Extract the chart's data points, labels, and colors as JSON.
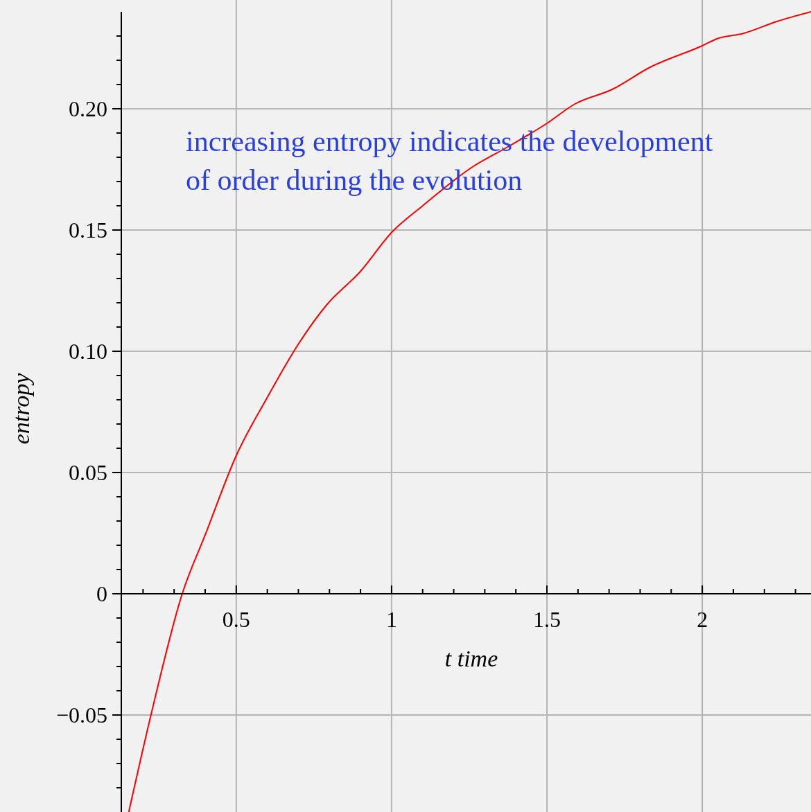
{
  "chart_data": {
    "type": "line",
    "xlabel": "t time",
    "ylabel": "entropy",
    "annotations": [
      "increasing entropy indicates the development\nof order during the evolution"
    ],
    "xlim": [
      0.13,
      2.35
    ],
    "ylim": [
      -0.09,
      0.24
    ],
    "xticks": [
      {
        "value": 0.2,
        "label": null
      },
      {
        "value": 0.3,
        "label": null
      },
      {
        "value": 0.4,
        "label": null
      },
      0.5,
      {
        "value": 0.6,
        "label": null
      },
      {
        "value": 0.7,
        "label": null
      },
      {
        "value": 0.8,
        "label": null
      },
      {
        "value": 0.9,
        "label": null
      },
      1,
      {
        "value": 1.1,
        "label": null
      },
      {
        "value": 1.2,
        "label": null
      },
      {
        "value": 1.3,
        "label": null
      },
      {
        "value": 1.4,
        "label": null
      },
      1.5,
      {
        "value": 1.6,
        "label": null
      },
      {
        "value": 1.7,
        "label": null
      },
      {
        "value": 1.8,
        "label": null
      },
      {
        "value": 1.9,
        "label": null
      },
      2,
      {
        "value": 2.1,
        "label": null
      },
      {
        "value": 2.2,
        "label": null
      },
      {
        "value": 2.3,
        "label": null
      }
    ],
    "yticks": [
      {
        "value": -0.08,
        "label": null
      },
      {
        "value": -0.07,
        "label": null
      },
      {
        "value": -0.06,
        "label": null
      },
      {
        "value": -0.05,
        "label": "−0.05"
      },
      {
        "value": -0.04,
        "label": null
      },
      {
        "value": -0.03,
        "label": null
      },
      {
        "value": -0.02,
        "label": null
      },
      {
        "value": -0.01,
        "label": null
      },
      0,
      {
        "value": 0.01,
        "label": null
      },
      {
        "value": 0.02,
        "label": null
      },
      {
        "value": 0.03,
        "label": null
      },
      {
        "value": 0.04,
        "label": null
      },
      {
        "value": 0.05,
        "label": "0.05"
      },
      {
        "value": 0.06,
        "label": null
      },
      {
        "value": 0.07,
        "label": null
      },
      {
        "value": 0.08,
        "label": null
      },
      {
        "value": 0.09,
        "label": null
      },
      {
        "value": 0.1,
        "label": "0.10"
      },
      {
        "value": 0.11,
        "label": null
      },
      {
        "value": 0.12,
        "label": null
      },
      {
        "value": 0.13,
        "label": null
      },
      {
        "value": 0.14,
        "label": null
      },
      {
        "value": 0.15,
        "label": "0.15"
      },
      {
        "value": 0.16,
        "label": null
      },
      {
        "value": 0.17,
        "label": null
      },
      {
        "value": 0.18,
        "label": null
      },
      {
        "value": 0.19,
        "label": null
      },
      {
        "value": 0.2,
        "label": "0.20"
      },
      {
        "value": 0.21,
        "label": null
      },
      {
        "value": 0.22,
        "label": null
      },
      {
        "value": 0.23,
        "label": null
      }
    ],
    "grid": true,
    "x": [
      0.154,
      0.228,
      0.326,
      0.4,
      0.5,
      0.6,
      0.7,
      0.79,
      0.9,
      1.0,
      1.1,
      1.26,
      1.37,
      1.5,
      1.59,
      1.71,
      1.83,
      2.0,
      2.05,
      2.13,
      2.24,
      2.35
    ],
    "series": [
      {
        "color": "#ff0000",
        "values": [
          -0.09,
          -0.0486,
          0,
          0.0243,
          0.057,
          0.081,
          0.103,
          0.119,
          0.133,
          0.149,
          0.16,
          0.176,
          0.184,
          0.194,
          0.202,
          0.208,
          0.217,
          0.226,
          0.229,
          0.231,
          0.236,
          0.24
        ]
      }
    ]
  }
}
